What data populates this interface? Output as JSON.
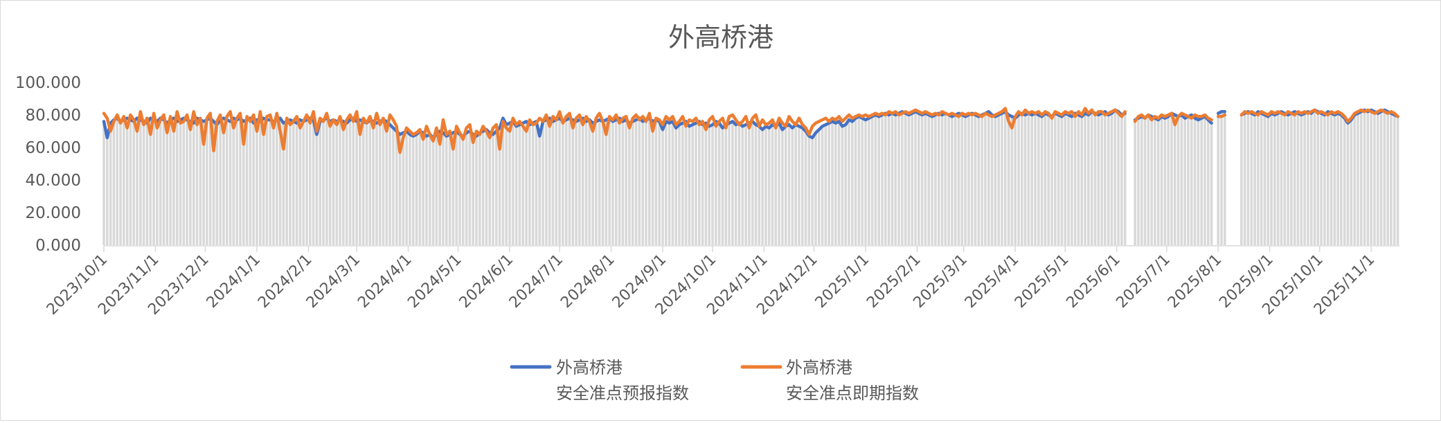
{
  "chart_data": {
    "type": "line",
    "title": "外高桥港",
    "xlabel": "",
    "ylabel": "",
    "x_range": [
      "2023/10/1",
      "2025/11/18"
    ],
    "x_interval_days": 2,
    "x_tick_labels": [
      "2023/10/1",
      "2023/11/1",
      "2023/12/1",
      "2024/1/1",
      "2024/2/1",
      "2024/3/1",
      "2024/4/1",
      "2024/5/1",
      "2024/6/1",
      "2024/7/1",
      "2024/8/1",
      "2024/9/1",
      "2024/10/1",
      "2024/11/1",
      "2024/12/1",
      "2025/1/1",
      "2025/2/1",
      "2025/3/1",
      "2025/4/1",
      "2025/5/1",
      "2025/6/1",
      "2025/7/1",
      "2025/8/1",
      "2025/9/1",
      "2025/10/1",
      "2025/11/1"
    ],
    "ylim": [
      0,
      100
    ],
    "y_tick_labels": [
      "0.000",
      "20.000",
      "40.000",
      "60.000",
      "80.000",
      "100.000"
    ],
    "grid": false,
    "legend_position": "bottom",
    "background_bars_color": "#d9d9d9",
    "series": [
      {
        "name": "外高桥港 安全准点预报指数",
        "name_lines": [
          "外高桥港",
          "安全准点预报指数"
        ],
        "color": "#4472c4",
        "values": [
          76,
          66,
          75,
          77,
          78,
          76,
          77,
          78,
          77,
          76,
          78,
          77,
          76,
          75,
          78,
          77,
          76,
          78,
          77,
          75,
          77,
          78,
          76,
          77,
          78,
          77,
          76,
          75,
          78,
          77,
          76,
          77,
          78,
          76,
          74,
          77,
          78,
          77,
          76,
          78,
          77,
          78,
          76,
          77,
          78,
          75,
          77,
          76,
          78,
          77,
          77,
          76,
          77,
          78,
          75,
          76,
          77,
          76,
          75,
          77,
          76,
          77,
          78,
          77,
          68,
          76,
          77,
          78,
          76,
          77,
          76,
          77,
          76,
          75,
          77,
          78,
          76,
          77,
          76,
          75,
          77,
          76,
          75,
          76,
          77,
          76,
          74,
          72,
          70,
          68,
          69,
          70,
          68,
          67,
          68,
          70,
          69,
          67,
          68,
          66,
          68,
          70,
          69,
          67,
          68,
          69,
          70,
          68,
          67,
          69,
          70,
          68,
          67,
          69,
          70,
          71,
          69,
          68,
          70,
          72,
          78,
          74,
          75,
          76,
          73,
          74,
          75,
          76,
          74,
          75,
          76,
          67,
          76,
          77,
          78,
          76,
          77,
          78,
          76,
          77,
          78,
          77,
          76,
          77,
          78,
          76,
          77,
          75,
          76,
          77,
          76,
          77,
          78,
          76,
          77,
          78,
          76,
          77,
          75,
          76,
          77,
          78,
          76,
          77,
          78,
          76,
          77,
          76,
          71,
          76,
          75,
          76,
          72,
          74,
          75,
          76,
          73,
          74,
          75,
          76,
          74,
          75,
          73,
          74,
          76,
          75,
          72,
          74,
          75,
          76,
          74,
          75,
          73,
          74,
          75,
          76,
          74,
          73,
          71,
          73,
          72,
          74,
          73,
          75,
          71,
          73,
          74,
          72,
          74,
          73,
          72,
          70,
          67,
          66,
          69,
          71,
          73,
          74,
          75,
          76,
          75,
          76,
          73,
          74,
          77,
          76,
          78,
          79,
          78,
          77,
          78,
          79,
          80,
          79,
          80,
          81,
          80,
          81,
          80,
          81,
          82,
          81,
          80,
          81,
          82,
          81,
          80,
          81,
          80,
          79,
          80,
          81,
          80,
          81,
          80,
          79,
          80,
          81,
          80,
          79,
          80,
          81,
          80,
          79,
          80,
          81,
          82,
          80,
          79,
          80,
          81,
          82,
          80,
          79,
          78,
          80,
          81,
          80,
          81,
          80,
          81,
          80,
          79,
          81,
          80,
          79,
          81,
          80,
          79,
          81,
          80,
          79,
          81,
          80,
          79,
          81,
          80,
          82,
          81,
          80,
          81,
          82,
          80,
          81,
          83,
          82,
          80,
          81,
          null,
          null,
          77,
          78,
          79,
          78,
          80,
          79,
          78,
          77,
          79,
          78,
          79,
          81,
          80,
          79,
          80,
          78,
          79,
          80,
          78,
          77,
          78,
          79,
          77,
          75,
          null,
          81,
          82,
          82,
          null,
          null,
          null,
          null,
          80,
          81,
          82,
          81,
          80,
          82,
          81,
          80,
          79,
          81,
          80,
          81,
          82,
          81,
          80,
          81,
          82,
          81,
          80,
          81,
          82,
          81,
          83,
          82,
          81,
          80,
          82,
          81,
          80,
          81,
          80,
          78,
          75,
          77,
          80,
          81,
          82,
          83,
          82,
          83,
          82,
          81,
          82,
          83,
          82,
          81,
          80,
          79
        ]
      },
      {
        "name": "外高桥港 安全准点即期指数",
        "name_lines": [
          "外高桥港",
          "安全准点即期指数"
        ],
        "color": "#ed7d31",
        "values": [
          81,
          78,
          70,
          76,
          80,
          75,
          79,
          72,
          80,
          77,
          70,
          82,
          74,
          78,
          68,
          81,
          72,
          77,
          80,
          69,
          79,
          70,
          82,
          75,
          76,
          80,
          71,
          82,
          74,
          78,
          62,
          78,
          81,
          58,
          76,
          80,
          69,
          79,
          82,
          72,
          78,
          81,
          62,
          79,
          76,
          80,
          70,
          82,
          68,
          79,
          80,
          72,
          81,
          70,
          59,
          78,
          74,
          76,
          79,
          72,
          76,
          80,
          75,
          82,
          70,
          78,
          76,
          81,
          73,
          77,
          74,
          79,
          71,
          77,
          80,
          76,
          82,
          68,
          78,
          75,
          79,
          72,
          81,
          74,
          78,
          70,
          80,
          77,
          73,
          57,
          66,
          72,
          70,
          68,
          69,
          71,
          65,
          73,
          68,
          64,
          72,
          62,
          77,
          68,
          70,
          59,
          73,
          69,
          65,
          72,
          74,
          63,
          70,
          68,
          73,
          70,
          66,
          72,
          74,
          59,
          76,
          72,
          70,
          78,
          74,
          76,
          73,
          70,
          77,
          74,
          75,
          78,
          76,
          80,
          73,
          79,
          77,
          82,
          75,
          79,
          81,
          72,
          78,
          80,
          74,
          79,
          76,
          70,
          78,
          81,
          76,
          68,
          79,
          77,
          80,
          75,
          78,
          79,
          72,
          78,
          80,
          77,
          79,
          76,
          81,
          70,
          78,
          77,
          74,
          79,
          77,
          79,
          74,
          76,
          79,
          73,
          77,
          76,
          78,
          74,
          76,
          71,
          77,
          79,
          73,
          76,
          78,
          72,
          79,
          80,
          77,
          74,
          76,
          79,
          72,
          78,
          80,
          73,
          77,
          74,
          75,
          77,
          72,
          78,
          75,
          73,
          79,
          76,
          74,
          78,
          74,
          72,
          68,
          73,
          75,
          76,
          77,
          78,
          76,
          78,
          77,
          79,
          76,
          78,
          80,
          78,
          79,
          80,
          79,
          80,
          79,
          80,
          81,
          80,
          81,
          80,
          82,
          81,
          82,
          80,
          81,
          82,
          81,
          82,
          83,
          82,
          81,
          82,
          81,
          80,
          81,
          80,
          82,
          81,
          80,
          81,
          80,
          79,
          81,
          80,
          81,
          80,
          81,
          80,
          79,
          81,
          80,
          79,
          80,
          81,
          82,
          84,
          76,
          72,
          79,
          82,
          80,
          83,
          81,
          82,
          81,
          82,
          80,
          82,
          81,
          78,
          82,
          81,
          80,
          82,
          81,
          82,
          79,
          82,
          80,
          84,
          81,
          83,
          80,
          82,
          82,
          80,
          81,
          82,
          83,
          81,
          79,
          82,
          null,
          null,
          76,
          79,
          80,
          78,
          80,
          77,
          79,
          78,
          80,
          79,
          80,
          81,
          74,
          79,
          81,
          80,
          79,
          78,
          80,
          79,
          79,
          80,
          78,
          77,
          null,
          79,
          79,
          80,
          null,
          null,
          null,
          null,
          80,
          82,
          81,
          82,
          81,
          80,
          82,
          81,
          80,
          82,
          81,
          82,
          81,
          80,
          82,
          81,
          80,
          82,
          81,
          82,
          81,
          82,
          83,
          81,
          82,
          81,
          80,
          82,
          81,
          82,
          81,
          79,
          76,
          78,
          81,
          82,
          83,
          82,
          83,
          82,
          81,
          82,
          83,
          82,
          81,
          82,
          81,
          79
        ]
      }
    ]
  }
}
